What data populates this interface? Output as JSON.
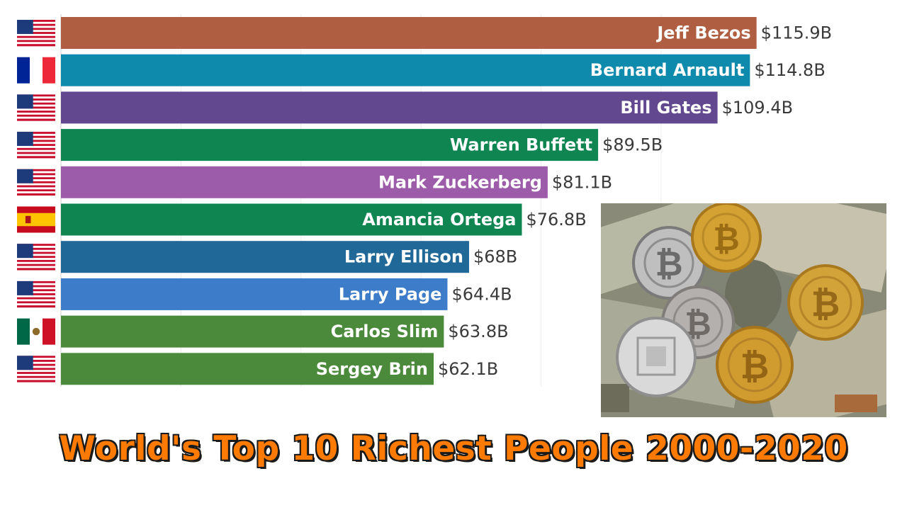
{
  "chart_data": {
    "type": "bar",
    "orientation": "horizontal",
    "categories": [
      "Jeff Bezos",
      "Bernard Arnault",
      "Bill Gates",
      "Warren Buffett",
      "Mark Zuckerberg",
      "Amancia Ortega",
      "Larry Ellison",
      "Larry Page",
      "Carlos Slim",
      "Sergey Brin"
    ],
    "values": [
      115.9,
      114.8,
      109.4,
      89.5,
      81.1,
      76.8,
      68,
      64.4,
      63.8,
      62.1
    ],
    "value_labels": [
      "$115.9B",
      "$114.8B",
      "$109.4B",
      "$89.5B",
      "$81.1B",
      "$76.8B",
      "$68B",
      "$64.4B",
      "$63.8B",
      "$62.1B"
    ],
    "countries": [
      "usa",
      "france",
      "usa",
      "usa",
      "usa",
      "spain",
      "usa",
      "usa",
      "mexico",
      "usa"
    ],
    "colors": [
      "#b05e41",
      "#0e8aac",
      "#62488f",
      "#0f8552",
      "#9d5ca9",
      "#0f8552",
      "#206897",
      "#3d7cc8",
      "#4a8a3a",
      "#4a8a3a"
    ],
    "xlim": [
      0,
      120
    ],
    "grid": true
  },
  "title": "World's Top 10 Richest People 2000-2020",
  "image": {
    "subject": "bitcoin-coins-on-dollar-bills"
  }
}
